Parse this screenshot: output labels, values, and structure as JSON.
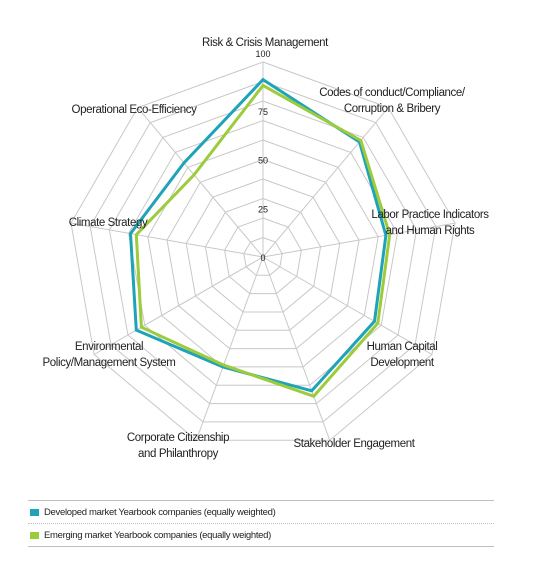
{
  "chart_data": {
    "type": "radar",
    "axes": [
      "Risk & Crisis Management",
      "Codes of conduct/Compliance/Corruption & Bribery",
      "Labor Practice Indicators and Human Rights",
      "Human Capital Development",
      "Stakeholder Engagement",
      "Corporate Citizenship and Philanthropy",
      "Environmental Policy/Management System",
      "Climate Strategy",
      "Operational Eco-Efficiency"
    ],
    "axis_label_lines": [
      [
        "Risk & Crisis Management"
      ],
      [
        "Codes of conduct/Compliance/",
        "Corruption & Bribery"
      ],
      [
        "Labor Practice Indicators",
        "and Human Rights"
      ],
      [
        "Human Capital",
        "Development"
      ],
      [
        "Stakeholder Engagement"
      ],
      [
        "Corporate Citizenship",
        "and Philanthropy"
      ],
      [
        "Environmental",
        "Policy/Management System"
      ],
      [
        "Climate Strategy"
      ],
      [
        "Operational Eco-Efficiency"
      ]
    ],
    "scale": {
      "min": 0,
      "max": 100,
      "ticks": [
        0,
        25,
        50,
        75,
        100
      ]
    },
    "series": [
      {
        "name": "Developed market Yearbook companies (equally weighted)",
        "color": "#1fa3b8",
        "values": [
          91,
          77,
          64,
          66,
          73,
          60,
          75,
          69,
          63
        ]
      },
      {
        "name": "Emerging market Yearbook companies (equally weighted)",
        "color": "#9ccb3b",
        "values": [
          88,
          78,
          66,
          68,
          76,
          59,
          72,
          66,
          55
        ]
      }
    ],
    "title": "",
    "legend_position": "bottom"
  }
}
